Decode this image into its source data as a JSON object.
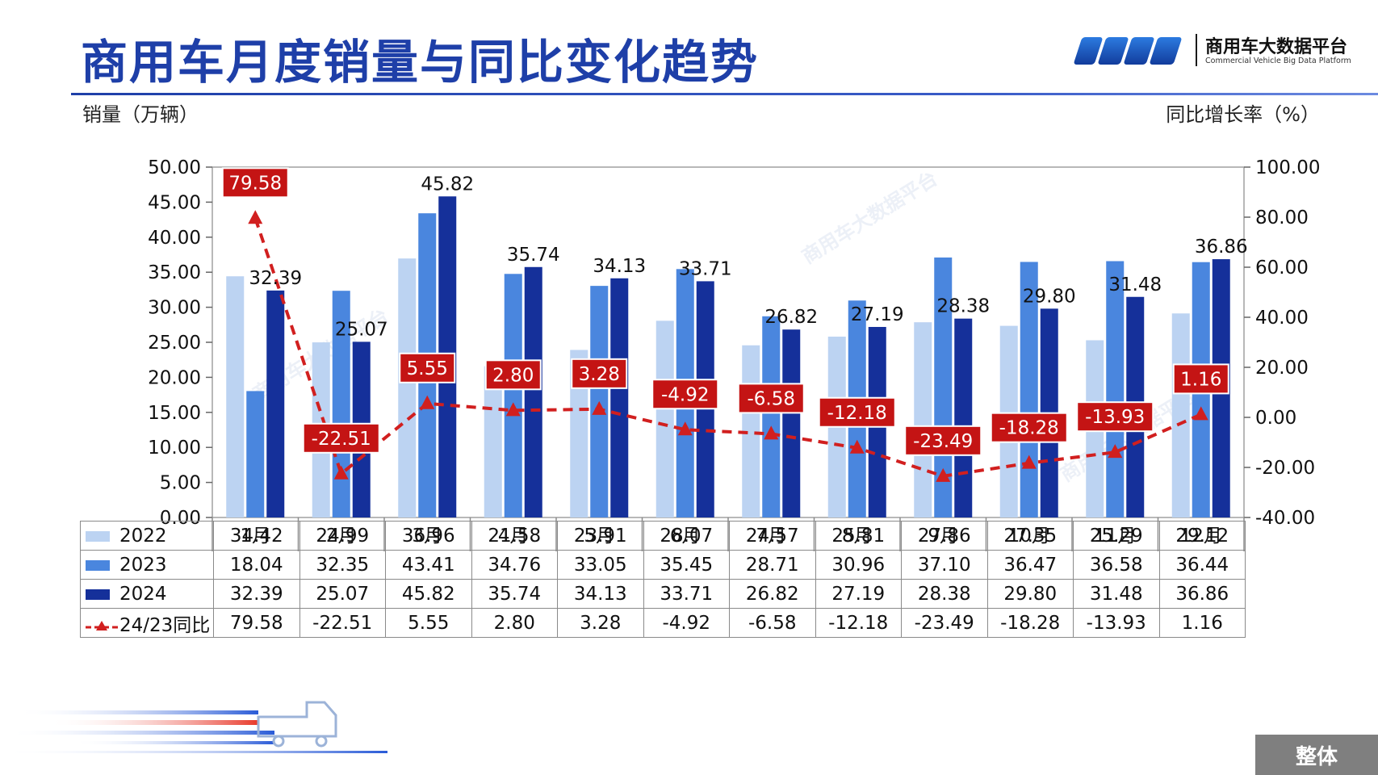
{
  "header": {
    "title": "商用车月度销量与同比变化趋势",
    "logo_name": "商用车大数据平台",
    "logo_subtitle": "Commercial Vehicle Big Data Platform",
    "logo_mark": "CVBD"
  },
  "axes": {
    "left_label": "销量（万辆）",
    "right_label": "同比增长率（%）"
  },
  "footer": {
    "scope_tag": "整体"
  },
  "colors": {
    "title": "#1e3fa8",
    "series_2022": "#bcd3f2",
    "series_2023": "#4a86de",
    "series_2024": "#15309a",
    "yoy_line": "#d11f1f",
    "yoy_label_bg": "#c41414"
  },
  "chart_data": {
    "type": "bar",
    "categories": [
      "1月",
      "2月",
      "3月",
      "4月",
      "5月",
      "6月",
      "7月",
      "8月",
      "9月",
      "10月",
      "11月",
      "12月"
    ],
    "series": [
      {
        "name": "2022",
        "values": [
          34.42,
          24.99,
          36.96,
          21.58,
          23.91,
          28.07,
          24.57,
          25.81,
          27.86,
          27.35,
          25.29,
          29.12
        ]
      },
      {
        "name": "2023",
        "values": [
          18.04,
          32.35,
          43.41,
          34.76,
          33.05,
          35.45,
          28.71,
          30.96,
          37.1,
          36.47,
          36.58,
          36.44
        ]
      },
      {
        "name": "2024",
        "values": [
          32.39,
          25.07,
          45.82,
          35.74,
          34.13,
          33.71,
          26.82,
          27.19,
          28.38,
          29.8,
          31.48,
          36.86
        ]
      }
    ],
    "line_series": {
      "name": "24/23同比",
      "type": "line",
      "axis": "right",
      "values": [
        79.58,
        -22.51,
        5.55,
        2.8,
        3.28,
        -4.92,
        -6.58,
        -12.18,
        -23.49,
        -18.28,
        -13.93,
        1.16
      ]
    },
    "ylabel": "销量（万辆）",
    "y2label": "同比增长率（%）",
    "ylim": [
      0,
      50
    ],
    "y2lim": [
      -40,
      100
    ],
    "yticks": [
      "0.00",
      "5.00",
      "10.00",
      "15.00",
      "20.00",
      "25.00",
      "30.00",
      "35.00",
      "40.00",
      "45.00",
      "50.00"
    ],
    "y2ticks": [
      "-40.00",
      "-20.00",
      "0.00",
      "20.00",
      "40.00",
      "60.00",
      "80.00",
      "100.00"
    ],
    "bar_labels_2024": [
      "32.39",
      "25.07",
      "45.82",
      "35.74",
      "34.13",
      "33.71",
      "26.82",
      "27.19",
      "28.38",
      "29.80",
      "31.48",
      "36.86"
    ],
    "line_labels": [
      "79.58",
      "-22.51",
      "5.55",
      "2.80",
      "3.28",
      "-4.92",
      "-6.58",
      "-12.18",
      "-23.49",
      "-18.28",
      "-13.93",
      "1.16"
    ],
    "table": {
      "rows": [
        {
          "label": "2022",
          "cells": [
            "34.42",
            "24.99",
            "36.96",
            "21.58",
            "23.91",
            "28.07",
            "24.57",
            "25.81",
            "27.86",
            "27.35",
            "25.29",
            "29.12"
          ]
        },
        {
          "label": "2023",
          "cells": [
            "18.04",
            "32.35",
            "43.41",
            "34.76",
            "33.05",
            "35.45",
            "28.71",
            "30.96",
            "37.10",
            "36.47",
            "36.58",
            "36.44"
          ]
        },
        {
          "label": "2024",
          "cells": [
            "32.39",
            "25.07",
            "45.82",
            "35.74",
            "34.13",
            "33.71",
            "26.82",
            "27.19",
            "28.38",
            "29.80",
            "31.48",
            "36.86"
          ]
        },
        {
          "label": "24/23同比",
          "cells": [
            "79.58",
            "-22.51",
            "5.55",
            "2.80",
            "3.28",
            "-4.92",
            "-6.58",
            "-12.18",
            "-23.49",
            "-18.28",
            "-13.93",
            "1.16"
          ]
        }
      ]
    },
    "legend_placement": "bottom-table",
    "grid": false
  }
}
